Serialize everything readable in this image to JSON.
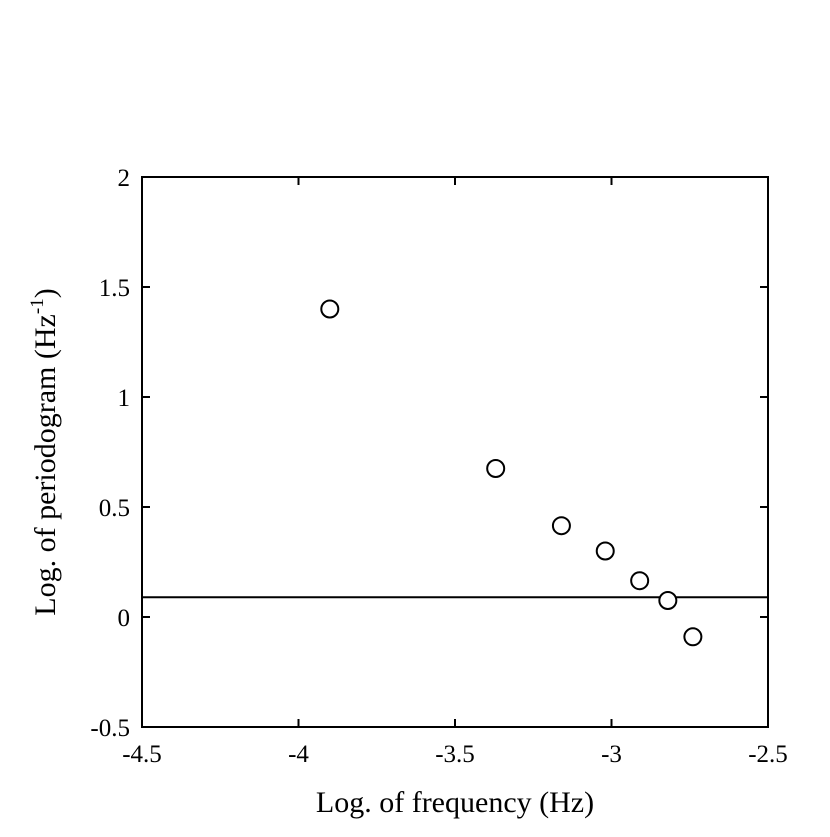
{
  "chart_data": {
    "type": "scatter",
    "title": "",
    "xlabel": "Log. of frequency (Hz)",
    "ylabel": "Log. of periodogram (Hz",
    "ylabel_superscript": "-1",
    "ylabel_suffix": ")",
    "xlim": [
      -4.5,
      -2.5
    ],
    "ylim": [
      -0.5,
      2
    ],
    "xticks": [
      -4.5,
      -4,
      -3.5,
      -3,
      -2.5
    ],
    "yticks": [
      -0.5,
      0,
      0.5,
      1,
      1.5,
      2
    ],
    "xtick_labels": [
      "-4.5",
      "-4",
      "-3.5",
      "-3",
      "-2.5"
    ],
    "ytick_labels": [
      "-0.5",
      "0",
      "0.5",
      "1",
      "1.5",
      "2"
    ],
    "grid": false,
    "marker": "open-circle",
    "color": "#000000",
    "points": [
      {
        "x": -3.9,
        "y": 1.4
      },
      {
        "x": -3.37,
        "y": 0.675
      },
      {
        "x": -3.16,
        "y": 0.415
      },
      {
        "x": -3.02,
        "y": 0.3
      },
      {
        "x": -2.91,
        "y": 0.165
      },
      {
        "x": -2.82,
        "y": 0.075
      },
      {
        "x": -2.74,
        "y": -0.09
      }
    ],
    "reference_line": {
      "y": 0.09
    }
  }
}
